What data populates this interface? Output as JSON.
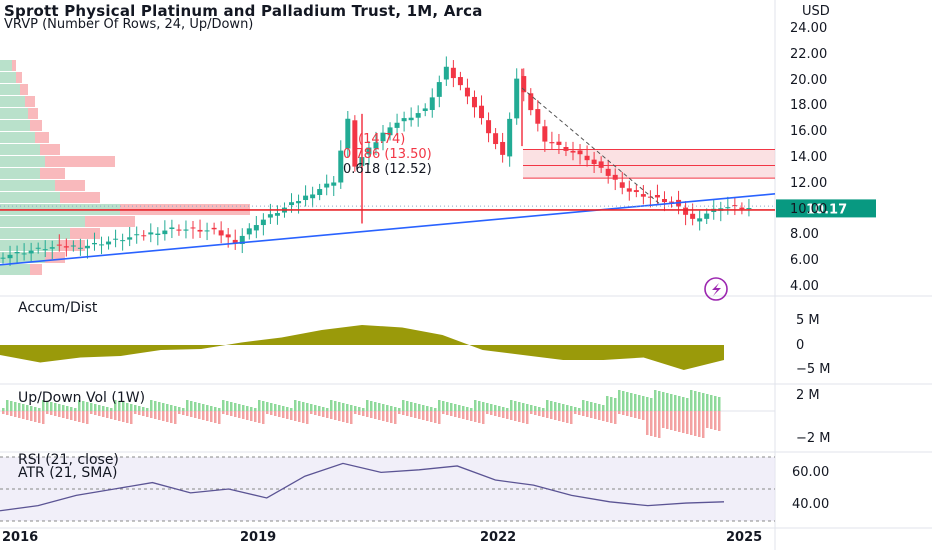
{
  "header": {
    "title": "Sprott Physical Platinum and Palladium Trust, 1M, Arca",
    "subtitle": "VRVP (Number Of Rows, 24, Up/Down)",
    "currency": "USD"
  },
  "price_axis": {
    "ticks": [
      "24.00",
      "22.00",
      "20.00",
      "18.00",
      "16.00",
      "14.00",
      "12.00",
      "10.00",
      "8.00",
      "6.00",
      "4.00"
    ],
    "last_price": "10.17",
    "last_price_color": "#089981"
  },
  "fib_labels": [
    "(14.74)",
    "0.786 (13.50)",
    "0.618 (12.52)"
  ],
  "x_axis": {
    "ticks": [
      "2016",
      "2019",
      "2022",
      "2025"
    ]
  },
  "indicators": {
    "accum_dist": {
      "title": "Accum/Dist",
      "ticks": [
        "5 M",
        "0",
        "−5 M"
      ],
      "color": "#9a9a0a"
    },
    "updown_vol": {
      "title": "Up/Down Vol (1W)",
      "ticks": [
        "2 M",
        "−2 M"
      ],
      "up_color": "#8ed99a",
      "down_color": "#f3a2a2"
    },
    "rsi": {
      "title": "RSI (21, close)",
      "subtitle": "ATR (21, SMA)",
      "ticks": [
        "60.00",
        "40.00"
      ],
      "color": "#5b5494"
    }
  },
  "colors": {
    "up": "#22ab94",
    "down": "#f23645",
    "trendline": "#2962ff",
    "hline": "#e8262c",
    "band": "#f8cdd0"
  },
  "chart_data": [
    {
      "type": "candlestick",
      "title": "Sprott Physical Platinum and Palladium Trust, 1M, Arca",
      "ylim": [
        4,
        24
      ],
      "x_range": [
        "2016-01",
        "2024-12"
      ],
      "series": [
        {
          "date": "2016-01",
          "close": 6.5
        },
        {
          "date": "2016-07",
          "close": 7.1
        },
        {
          "date": "2017-01",
          "close": 7.3
        },
        {
          "date": "2017-07",
          "close": 7.9
        },
        {
          "date": "2018-01",
          "close": 8.6
        },
        {
          "date": "2018-07",
          "close": 8.4
        },
        {
          "date": "2018-10",
          "close": 7.6
        },
        {
          "date": "2019-01",
          "close": 9.0
        },
        {
          "date": "2019-07",
          "close": 10.8
        },
        {
          "date": "2019-12",
          "close": 12.3
        },
        {
          "date": "2020-02",
          "close": 17.0
        },
        {
          "date": "2020-03",
          "close": 13.5
        },
        {
          "date": "2020-08",
          "close": 16.6
        },
        {
          "date": "2021-01",
          "close": 17.8
        },
        {
          "date": "2021-04",
          "close": 21.0
        },
        {
          "date": "2021-07",
          "close": 19.0
        },
        {
          "date": "2021-12",
          "close": 14.2
        },
        {
          "date": "2022-02",
          "close": 20.2
        },
        {
          "date": "2022-06",
          "close": 15.5
        },
        {
          "date": "2022-12",
          "close": 14.0
        },
        {
          "date": "2023-06",
          "close": 11.5
        },
        {
          "date": "2023-12",
          "close": 10.6
        },
        {
          "date": "2024-03",
          "close": 9.3
        },
        {
          "date": "2024-07",
          "close": 10.3
        },
        {
          "date": "2024-11",
          "close": 10.17
        }
      ]
    },
    {
      "type": "line",
      "title": "Accum/Dist",
      "ylim": [
        -6,
        6
      ],
      "series": [
        {
          "values": [
            -2.0,
            -3.5,
            -2.5,
            -2.2,
            -1.0,
            -0.8,
            0.5,
            1.5,
            3.0,
            4.0,
            3.5,
            2.0,
            -1.0,
            -2.0,
            -3.0,
            -3.0,
            -2.5,
            -5.0,
            -3.0
          ]
        }
      ]
    },
    {
      "type": "line",
      "title": "RSI (21, close)",
      "ylim": [
        30,
        80
      ],
      "series": [
        {
          "values": [
            38,
            42,
            50,
            55,
            60,
            52,
            55,
            48,
            65,
            75,
            68,
            70,
            73,
            62,
            58,
            50,
            45,
            42,
            44,
            45
          ]
        }
      ]
    }
  ]
}
